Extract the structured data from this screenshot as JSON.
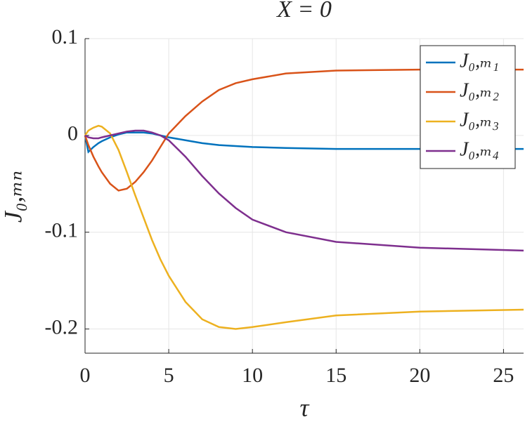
{
  "chart_data": {
    "type": "line",
    "title": "X = 0",
    "xlabel": "τ",
    "ylabel": "J₀,ₘₙ",
    "x": [
      0,
      0.2,
      0.5,
      0.8,
      1,
      1.5,
      2,
      2.5,
      3,
      3.5,
      4,
      4.5,
      5,
      6,
      7,
      8,
      9,
      10,
      12,
      15,
      20,
      26.2
    ],
    "series": [
      {
        "name": "J₀,ₘ₁",
        "color": "#0072BD",
        "values": [
          0,
          -0.017,
          -0.012,
          -0.008,
          -0.006,
          -0.002,
          0.001,
          0.003,
          0.003,
          0.003,
          0.002,
          0,
          -0.002,
          -0.005,
          -0.008,
          -0.01,
          -0.011,
          -0.012,
          -0.013,
          -0.014,
          -0.014,
          -0.014
        ]
      },
      {
        "name": "J₀,ₘ₂",
        "color": "#D95319",
        "values": [
          0,
          -0.01,
          -0.022,
          -0.032,
          -0.038,
          -0.05,
          -0.057,
          -0.055,
          -0.048,
          -0.038,
          -0.026,
          -0.012,
          0.002,
          0.02,
          0.035,
          0.047,
          0.054,
          0.058,
          0.064,
          0.067,
          0.068,
          0.068
        ]
      },
      {
        "name": "J₀,ₘ₃",
        "color": "#EDB120",
        "values": [
          0,
          0.005,
          0.008,
          0.01,
          0.009,
          0.002,
          -0.015,
          -0.038,
          -0.062,
          -0.085,
          -0.108,
          -0.128,
          -0.145,
          -0.172,
          -0.19,
          -0.198,
          -0.2,
          -0.198,
          -0.193,
          -0.186,
          -0.182,
          -0.18
        ]
      },
      {
        "name": "J₀,ₘ₄",
        "color": "#7E2F8E",
        "values": [
          0,
          -0.002,
          -0.003,
          -0.003,
          -0.002,
          0,
          0.002,
          0.004,
          0.005,
          0.005,
          0.003,
          0,
          -0.005,
          -0.022,
          -0.042,
          -0.06,
          -0.075,
          -0.087,
          -0.1,
          -0.11,
          -0.116,
          -0.119
        ]
      }
    ],
    "xlim": [
      0,
      26.2
    ],
    "ylim": [
      -0.225,
      0.1
    ],
    "xticks": [
      0,
      5,
      10,
      15,
      20,
      25
    ],
    "yticks": [
      -0.2,
      -0.1,
      0,
      0.1
    ],
    "grid": true,
    "legend": "upper right"
  }
}
